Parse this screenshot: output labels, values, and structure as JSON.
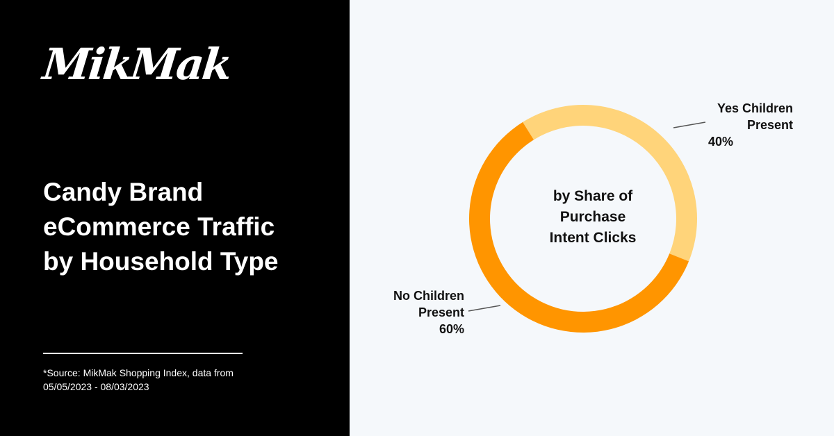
{
  "brand": {
    "logo_text": "MikMak"
  },
  "heading": {
    "lines": [
      "Candy Brand",
      "eCommerce Traffic",
      "by Household Type"
    ]
  },
  "footnote": {
    "lines": [
      "*Source: MikMak Shopping Index, data from",
      "05/05/2023 - 08/03/2023"
    ]
  },
  "colors": {
    "left_panel": "#000000",
    "background": "#f5f8fb",
    "yes_children": "#ffd47a",
    "no_children": "#ff9500",
    "leader_line": "#555555"
  },
  "chart_data": {
    "type": "pie",
    "donut": true,
    "center_label": [
      "by Share of",
      "Purchase",
      "Intent Clicks"
    ],
    "slices": [
      {
        "name_lines": [
          "Yes Children",
          "Present"
        ],
        "value": 40,
        "value_label": "40%",
        "color": "#ffd47a"
      },
      {
        "name_lines": [
          "No Children",
          "Present"
        ],
        "value": 60,
        "value_label": "60%",
        "color": "#ff9500"
      }
    ],
    "start_angle_deg": -32
  }
}
